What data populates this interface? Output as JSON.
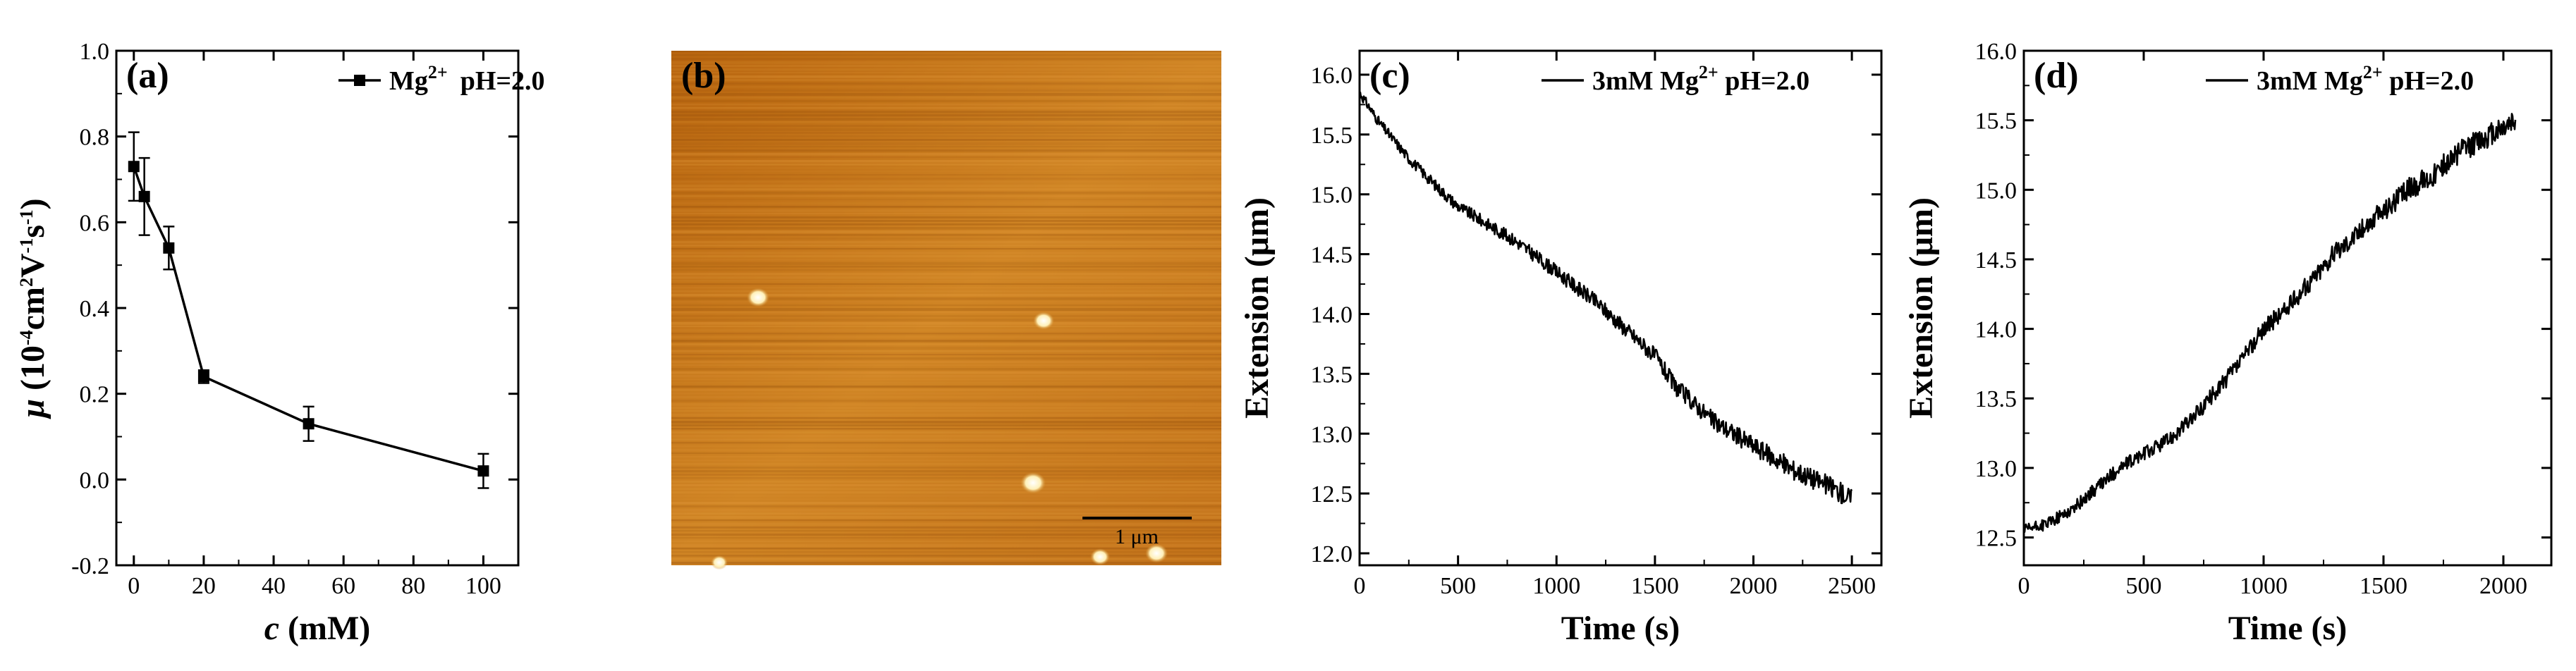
{
  "chart_data": [
    {
      "id": "a",
      "type": "line",
      "panel_label": "(a)",
      "xlabel_italic": "c",
      "xlabel_rest": " (mM)",
      "ylabel_mu": "μ",
      "ylabel_rest": " (10",
      "ylabel_unit_parts": [
        "-4",
        "cm",
        "2",
        "V",
        "-1",
        "s",
        "-1",
        ")"
      ],
      "xlim": [
        -5,
        110
      ],
      "ylim": [
        -0.2,
        1.0
      ],
      "xticks": [
        0,
        20,
        40,
        60,
        80,
        100
      ],
      "yticks": [
        "-0.2",
        "0.0",
        "0.2",
        "0.4",
        "0.6",
        "0.8",
        "1.0"
      ],
      "legend": {
        "text": "Mg",
        "sup": "2+",
        "extra": "pH=2.0",
        "position": "top-right"
      },
      "series": [
        {
          "x": [
            0,
            3,
            10,
            20,
            50,
            100
          ],
          "y": [
            0.73,
            0.66,
            0.54,
            0.24,
            0.13,
            0.02
          ],
          "err": [
            0.08,
            0.09,
            0.05,
            0.015,
            0.04,
            0.04
          ]
        }
      ]
    },
    {
      "id": "b",
      "type": "image",
      "panel_label": "(b)",
      "scale_bar_label": "1 μm",
      "background_color": "#c77a1c",
      "highlight_color": "#fff3c4"
    },
    {
      "id": "c",
      "type": "line",
      "panel_label": "(c)",
      "xlabel": "Time (s)",
      "ylabel": "Extension (μm)",
      "xlim": [
        0,
        2650
      ],
      "ylim": [
        11.9,
        16.2
      ],
      "xticks": [
        0,
        500,
        1000,
        1500,
        2000,
        2500
      ],
      "yticks": [
        "12.0",
        "12.5",
        "13.0",
        "13.5",
        "14.0",
        "14.5",
        "15.0",
        "15.5",
        "16.0"
      ],
      "legend": {
        "text": "3mM Mg",
        "sup": "2+",
        "extra": " pH=2.0",
        "position": "top-right"
      },
      "series": [
        {
          "x": [
            0,
            100,
            250,
            400,
            500,
            650,
            800,
            1000,
            1200,
            1400,
            1500,
            1600,
            1800,
            2000,
            2200,
            2400,
            2500
          ],
          "y": [
            15.85,
            15.6,
            15.3,
            15.05,
            14.9,
            14.75,
            14.6,
            14.35,
            14.1,
            13.8,
            13.65,
            13.4,
            13.1,
            12.9,
            12.7,
            12.55,
            12.45
          ]
        }
      ]
    },
    {
      "id": "d",
      "type": "line",
      "panel_label": "(d)",
      "xlabel": "Time (s)",
      "ylabel": "Extension (μm)",
      "xlim": [
        0,
        2200
      ],
      "ylim": [
        12.3,
        16.0
      ],
      "xticks": [
        0,
        500,
        1000,
        1500,
        2000
      ],
      "yticks": [
        "12.5",
        "13.0",
        "13.5",
        "14.0",
        "14.5",
        "15.0",
        "15.5",
        "16.0"
      ],
      "legend": {
        "text": "3mM Mg",
        "sup": "2+",
        "extra": " pH=2.0",
        "position": "top-right"
      },
      "series": [
        {
          "x": [
            0,
            100,
            200,
            300,
            400,
            500,
            600,
            700,
            800,
            900,
            1000,
            1100,
            1200,
            1300,
            1400,
            1500,
            1600,
            1700,
            1800,
            1900,
            2000,
            2050
          ],
          "y": [
            12.55,
            12.6,
            12.7,
            12.85,
            13.0,
            13.1,
            13.2,
            13.35,
            13.55,
            13.75,
            14.0,
            14.15,
            14.35,
            14.55,
            14.7,
            14.85,
            15.0,
            15.1,
            15.25,
            15.35,
            15.45,
            15.5
          ]
        }
      ]
    }
  ]
}
